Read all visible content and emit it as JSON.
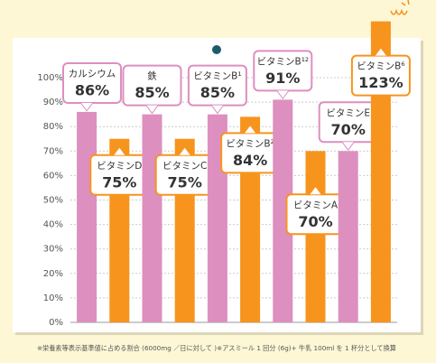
{
  "chart_data": {
    "type": "bar",
    "categories": [
      "カルシウム",
      "ビタミンD",
      "鉄",
      "ビタミンC",
      "ビタミンB¹",
      "ビタミンB²",
      "ビタミンB¹²",
      "ビタミンA",
      "ビタミンE",
      "ビタミンB⁶"
    ],
    "values": [
      86,
      75,
      85,
      75,
      85,
      84,
      91,
      70,
      70,
      123
    ],
    "value_labels": [
      "86%",
      "75%",
      "85%",
      "75%",
      "85%",
      "84%",
      "91%",
      "70%",
      "70%",
      "123%"
    ],
    "colors": [
      "#dd8fbf",
      "#f7941d",
      "#dd8fbf",
      "#f7941d",
      "#dd8fbf",
      "#f7941d",
      "#dd8fbf",
      "#f7941d",
      "#dd8fbf",
      "#f7941d"
    ],
    "ylim": [
      0,
      100
    ],
    "yticks": [
      {
        "value": 0,
        "label": "0%"
      },
      {
        "value": 10,
        "label": "10%"
      },
      {
        "value": 20,
        "label": "20%"
      },
      {
        "value": 30,
        "label": "30%"
      },
      {
        "value": 40,
        "label": "40%"
      },
      {
        "value": 50,
        "label": "50%"
      },
      {
        "value": 60,
        "label": "60%"
      },
      {
        "value": 70,
        "label": "70%"
      },
      {
        "value": 80,
        "label": "80%"
      },
      {
        "value": 90,
        "label": "90%"
      },
      {
        "value": 100,
        "label": "100%"
      }
    ],
    "grid": true,
    "footnote": "※栄養素等表示基準値に占める割合 (6000mg ／日に対して )※アスミール 1 回分 (6g)+ 牛乳 100ml を 1 杯分として換算"
  }
}
